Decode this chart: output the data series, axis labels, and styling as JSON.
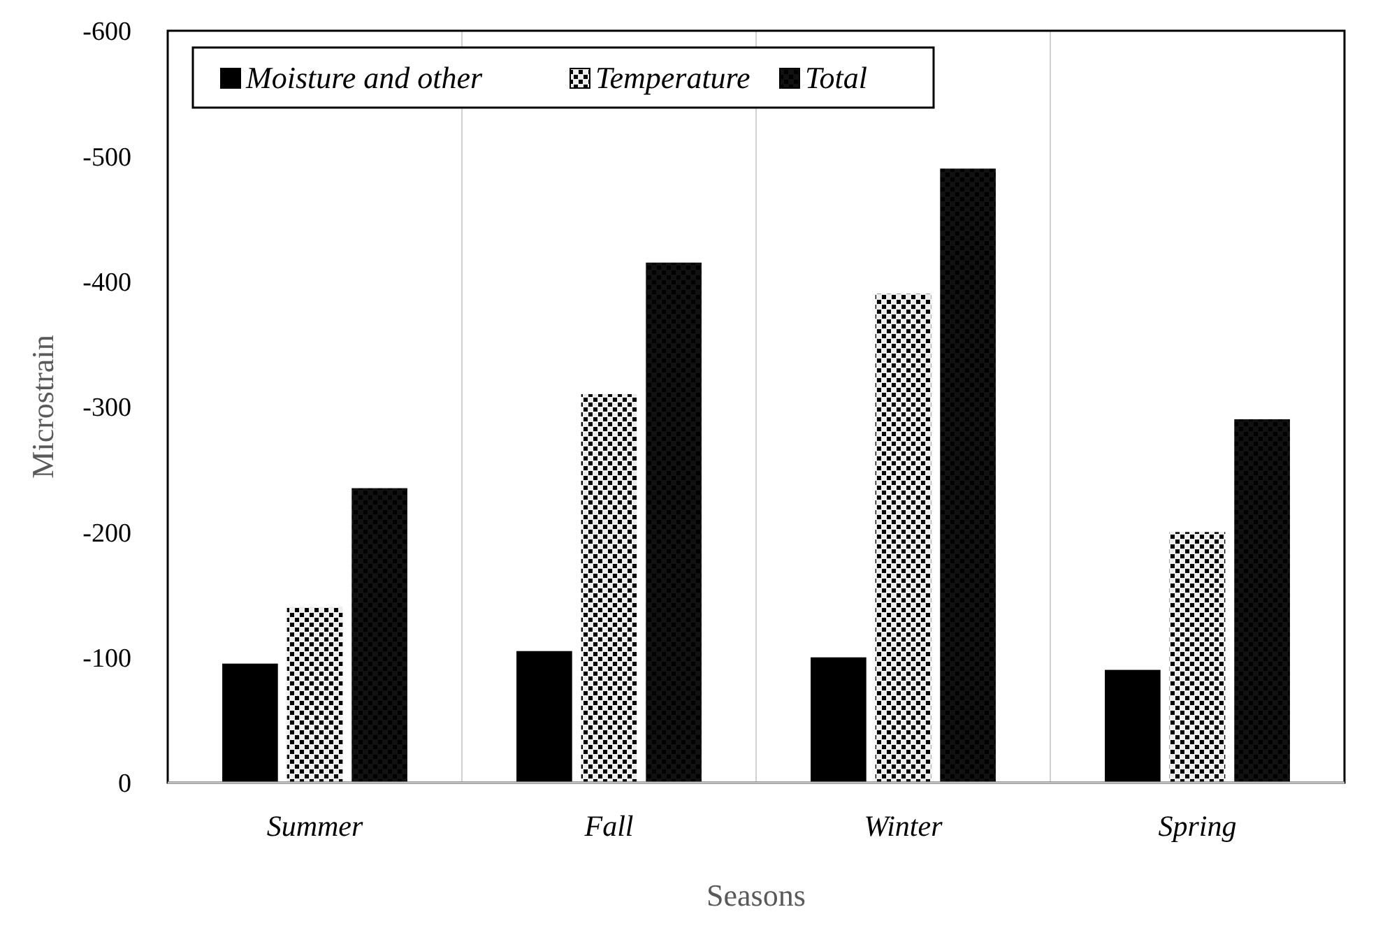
{
  "chart_data": {
    "type": "bar",
    "xlabel": "Seasons",
    "ylabel": "Microstrain",
    "categories": [
      "Summer",
      "Fall",
      "Winter",
      "Spring"
    ],
    "series": [
      {
        "name": "Moisture and other",
        "color": "#000000",
        "values": [
          -95,
          -105,
          -100,
          -90
        ]
      },
      {
        "name": "Temperature",
        "color": "#eeeeee",
        "values": [
          -140,
          -310,
          -390,
          -200
        ]
      },
      {
        "name": "Total",
        "color": "#111111",
        "values": [
          -235,
          -415,
          -490,
          -290
        ]
      }
    ],
    "ylim": [
      0,
      -600
    ],
    "yticks": [
      0,
      -100,
      -200,
      -300,
      -400,
      -500,
      -600
    ],
    "grid": "x",
    "legend": "top left"
  }
}
